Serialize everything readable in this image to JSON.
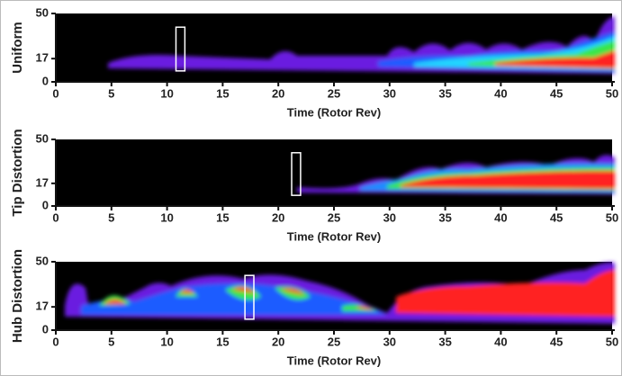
{
  "chart_data": [
    {
      "type": "heatmap",
      "ylabel": "Uniform",
      "xlabel": "Time (Rotor Rev)",
      "xlim": [
        0,
        50
      ],
      "ylim": [
        0,
        50
      ],
      "xticks": [
        0,
        5,
        10,
        15,
        20,
        25,
        30,
        35,
        40,
        45,
        50
      ],
      "yticks": [
        0,
        17,
        50
      ],
      "highlight_x": [
        10.8,
        11.6
      ]
    },
    {
      "type": "heatmap",
      "ylabel": "Tip Distortion",
      "xlabel": "Time (Rotor Rev)",
      "xlim": [
        0,
        50
      ],
      "ylim": [
        0,
        50
      ],
      "xticks": [
        0,
        5,
        10,
        15,
        20,
        25,
        30,
        35,
        40,
        45,
        50
      ],
      "yticks": [
        0,
        17,
        50
      ],
      "highlight_x": [
        21.2,
        22.0
      ]
    },
    {
      "type": "heatmap",
      "ylabel": "Hub Distortion",
      "xlabel": "Time (Rotor Rev)",
      "xlim": [
        0,
        50
      ],
      "ylim": [
        0,
        50
      ],
      "xticks": [
        0,
        5,
        10,
        15,
        20,
        25,
        30,
        35,
        40,
        45,
        50
      ],
      "yticks": [
        0,
        17,
        50
      ],
      "highlight_x": [
        17.0,
        17.8
      ]
    }
  ]
}
